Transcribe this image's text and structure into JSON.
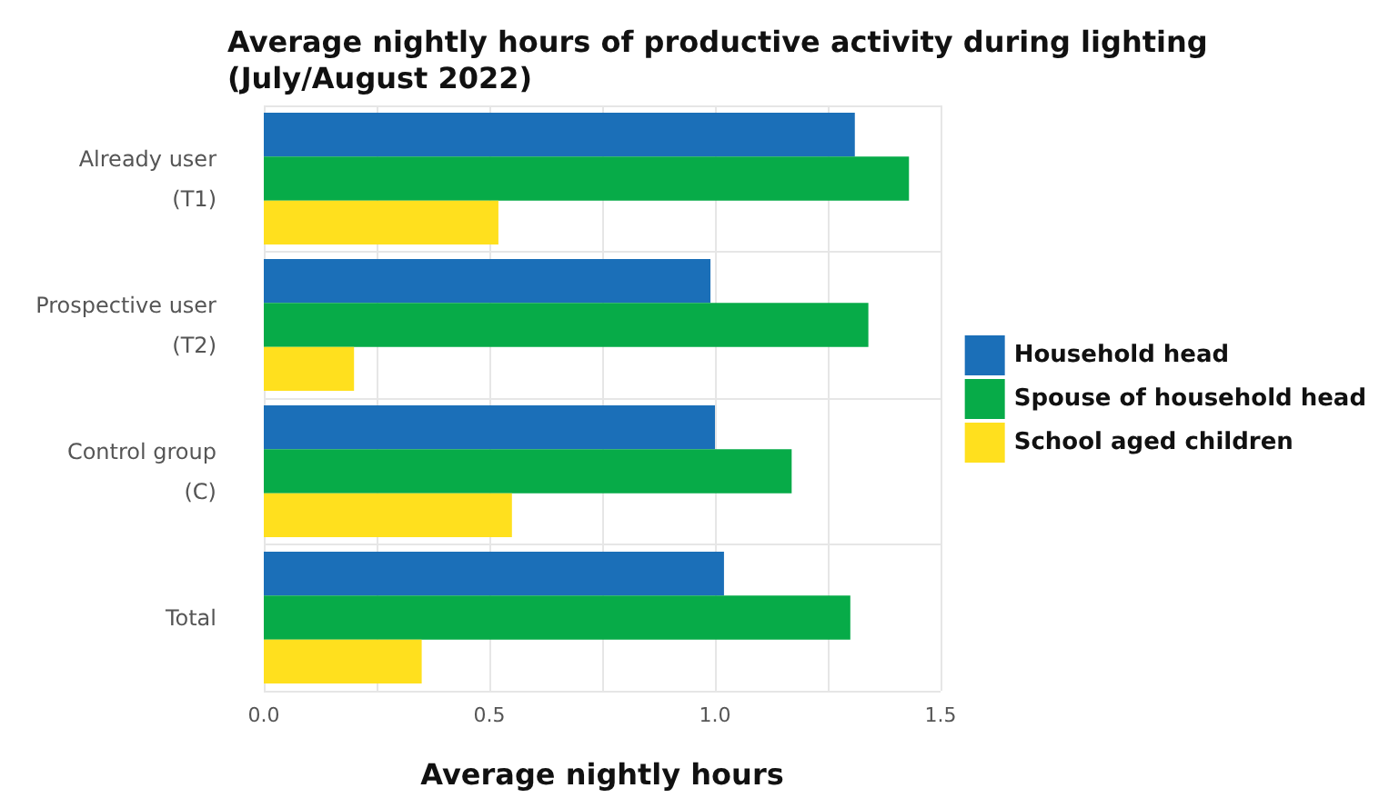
{
  "chart_data": {
    "type": "bar",
    "orientation": "horizontal",
    "title": "Average nightly hours of productive activity during lighting\n(July/August 2022)",
    "xlabel": "Average nightly hours",
    "categories": [
      "Already user\n(T1)",
      "Prospective user\n(T2)",
      "Control group\n(C)",
      "Total"
    ],
    "series": [
      {
        "name": "Household head",
        "color": "#1b6fb8",
        "values": [
          1.31,
          0.99,
          1.0,
          1.02
        ]
      },
      {
        "name": "Spouse of household head",
        "color": "#07ab48",
        "values": [
          1.43,
          1.34,
          1.17,
          1.3
        ]
      },
      {
        "name": "School aged children",
        "color": "#ffe01e",
        "values": [
          0.52,
          0.2,
          0.55,
          0.35
        ]
      }
    ],
    "xlim": [
      0,
      1.5
    ],
    "xticks": [
      {
        "value": 0,
        "label": "0.0"
      },
      {
        "value": 0.25,
        "label": null
      },
      {
        "value": 0.5,
        "label": "0.5"
      },
      {
        "value": 0.75,
        "label": null
      },
      {
        "value": 1,
        "label": "1.0"
      },
      {
        "value": 1.25,
        "label": null
      },
      {
        "value": 1.5,
        "label": "1.5"
      }
    ],
    "grid": true,
    "legend": "right"
  }
}
